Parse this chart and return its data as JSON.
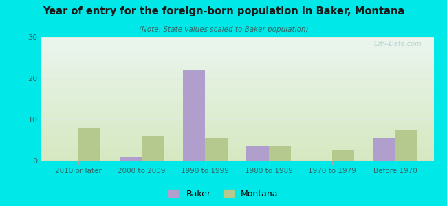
{
  "title": "Year of entry for the foreign-born population in Baker, Montana",
  "subtitle": "(Note: State values scaled to Baker population)",
  "categories": [
    "2010 or later",
    "2000 to 2009",
    "1990 to 1999",
    "1980 to 1989",
    "1970 to 1979",
    "Before 1970"
  ],
  "baker_values": [
    0,
    1,
    22,
    3.5,
    0,
    5.5
  ],
  "montana_values": [
    8,
    6,
    5.5,
    3.5,
    2.5,
    7.5
  ],
  "baker_color": "#b09fcc",
  "montana_color": "#b5c98e",
  "background_outer": "#00e8e8",
  "background_inner_top": "#eaf5ee",
  "background_inner_bottom": "#d5e8c0",
  "ylim": [
    0,
    30
  ],
  "yticks": [
    0,
    10,
    20,
    30
  ],
  "bar_width": 0.35,
  "legend_labels": [
    "Baker",
    "Montana"
  ],
  "grid_color": "#e0ece0",
  "watermark": "City-Data.com"
}
